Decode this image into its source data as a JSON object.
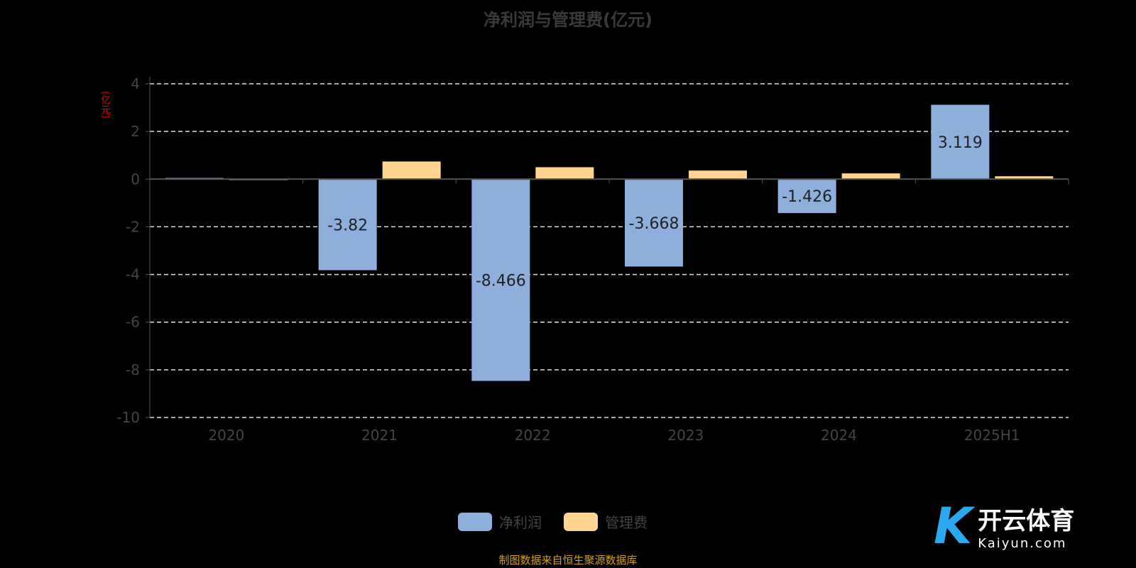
{
  "chart_data": {
    "type": "bar",
    "title": "净利润与管理费(亿元)",
    "ylabel": "(亿元)",
    "categories": [
      "2020",
      "2021",
      "2022",
      "2023",
      "2024",
      "2025H1"
    ],
    "series": [
      {
        "name": "净利润",
        "color": "#8eaedb",
        "values": [
          0.05,
          -3.82,
          -8.466,
          -3.668,
          -1.426,
          3.119
        ],
        "labels": [
          "",
          "-3.82",
          "-8.466",
          "-3.668",
          "-1.426",
          "3.119"
        ]
      },
      {
        "name": "管理费",
        "color": "#ffd591",
        "values": [
          0.02,
          0.74,
          0.5,
          0.36,
          0.24,
          0.12
        ]
      }
    ],
    "ylim": [
      -10,
      4
    ],
    "yticks": [
      "4",
      "2",
      "0",
      "-2",
      "-4",
      "-6",
      "-8",
      "-10"
    ],
    "grid": true,
    "legend": "bottom"
  },
  "source": "制图数据来自恒生聚源数据库",
  "logo": {
    "name": "开云体育",
    "url": "Kaiyun.com"
  }
}
